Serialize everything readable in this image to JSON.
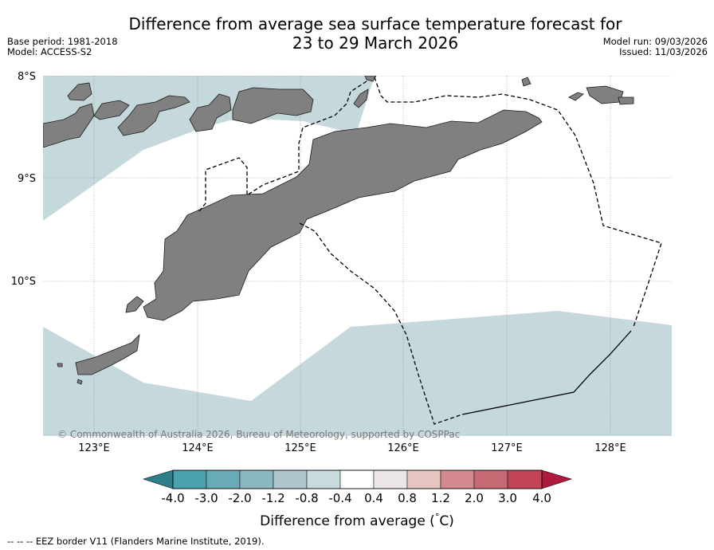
{
  "header": {
    "title_line1": "Difference from average sea surface temperature forecast for",
    "title_line2": "23 to 29 March 2026",
    "base_period": "Base period: 1981-2018",
    "model": "Model: ACCESS-S2",
    "model_run": "Model run: 09/03/2026",
    "issued": "Issued: 11/03/2026"
  },
  "map": {
    "lat_labels": [
      "8°S",
      "9°S",
      "10°S"
    ],
    "lon_labels": [
      "123°E",
      "124°E",
      "125°E",
      "126°E",
      "127°E",
      "128°E"
    ],
    "copyright": "© Commonwealth of Australia 2026, Bureau of Meteorology, supported by COSPPac",
    "colors": {
      "sea_neutral": "#ffffff",
      "sea_cool": "#c5d9dd",
      "land": "#808080",
      "coast": "#1a1a1a",
      "grid": "#888888"
    }
  },
  "legend": {
    "tick_labels": [
      "-4.0",
      "-3.0",
      "-2.0",
      "-1.2",
      "-0.8",
      "-0.4",
      "0.4",
      "0.8",
      "1.2",
      "2.0",
      "3.0",
      "4.0"
    ],
    "colors": [
      "#2e7f8a",
      "#4aa2b0",
      "#69aab7",
      "#8ab7c0",
      "#aec6cb",
      "#c8dadd",
      "#ffffff",
      "#ece6e6",
      "#e6c5c0",
      "#d3898e",
      "#c86a74",
      "#c24456",
      "#b01a3c"
    ],
    "label": "Difference from average (°C)",
    "label_prefix": "Difference from average (",
    "label_degree": "°",
    "label_unit": "C)"
  },
  "footer": {
    "eez_note": "-- -- -- EEZ border V11 (Flanders Marine Institute, 2019)."
  }
}
